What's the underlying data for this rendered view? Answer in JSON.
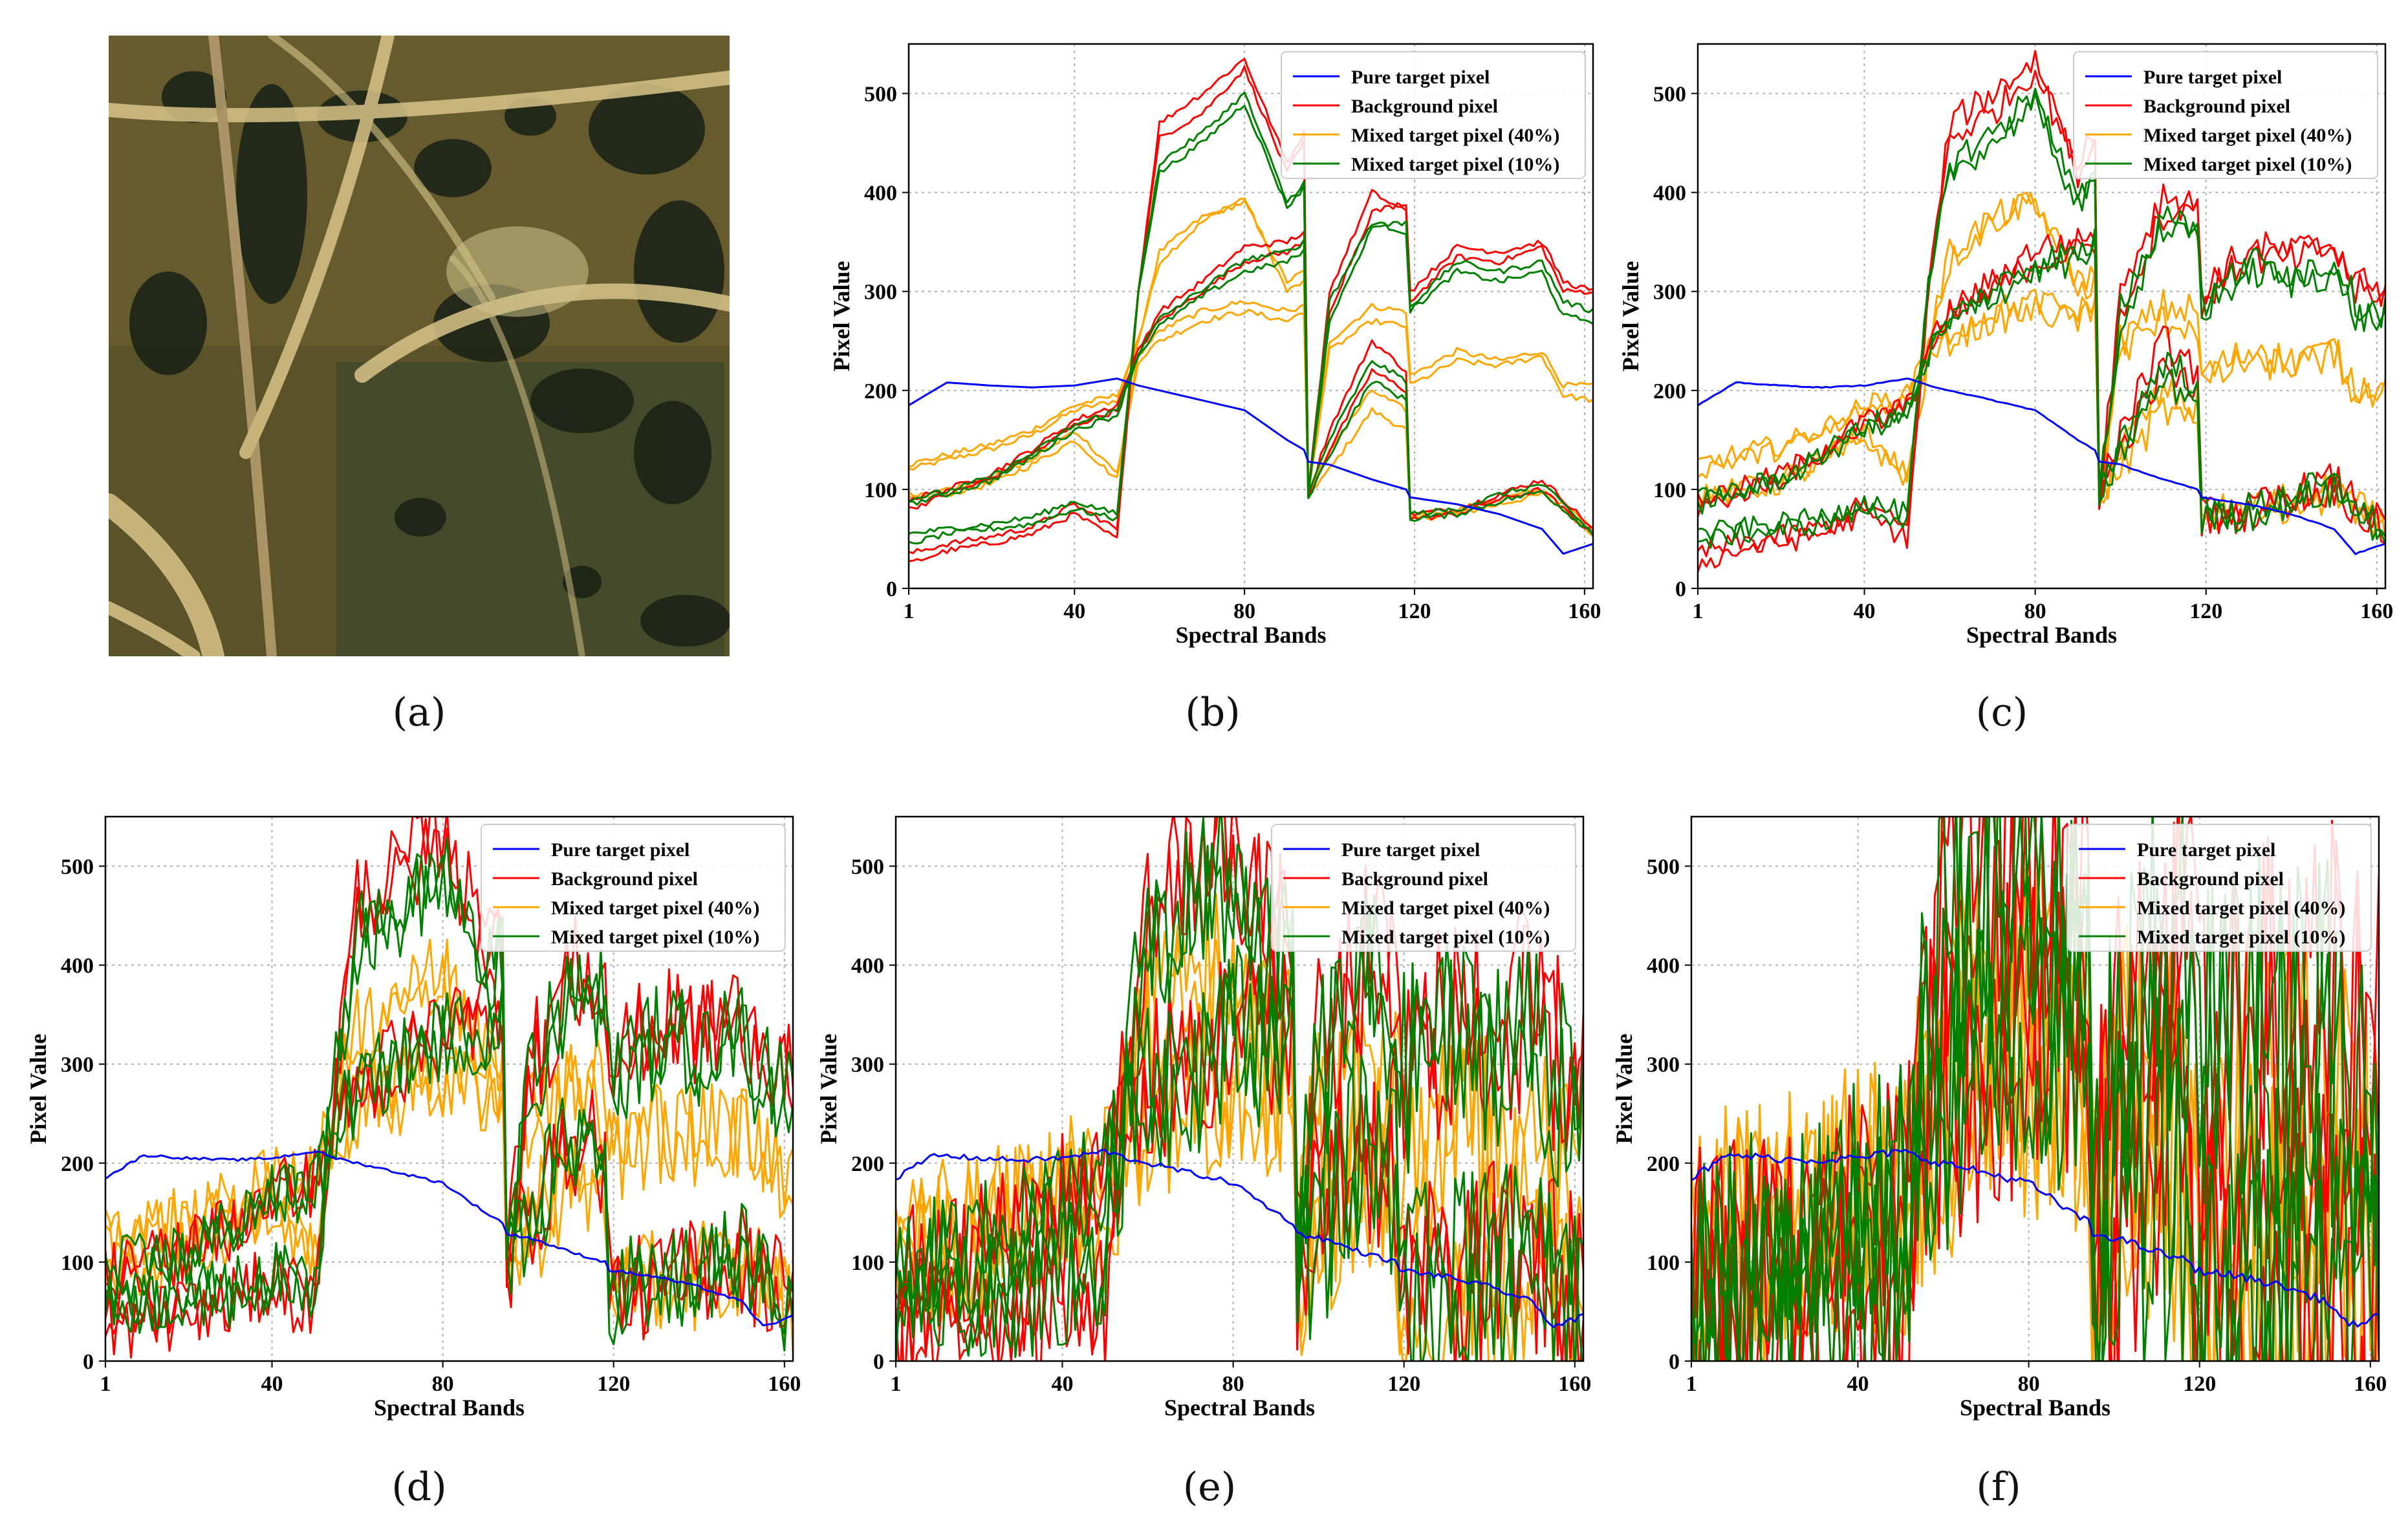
{
  "figure": {
    "photo_label": "(a)",
    "colors": {
      "pure": "#0000ff",
      "background": "#ff0000",
      "mixed40": "#ffa500",
      "mixed10": "#008000",
      "grid": "#b0b0b0"
    }
  },
  "chart_data": [
    {
      "panel_label": "(b)",
      "type": "line",
      "noise": 0,
      "xlabel": "Spectral Bands",
      "ylabel": "Pixel Value",
      "xlim": [
        1,
        162
      ],
      "ylim": [
        0,
        550
      ],
      "xticks": [
        1,
        40,
        80,
        120,
        160
      ],
      "yticks": [
        0,
        100,
        200,
        300,
        400,
        500
      ],
      "grid": true,
      "legend_position": "top-right",
      "legend": [
        "Pure target pixel",
        "Background pixel",
        "Mixed target pixel (40%)",
        "Mixed target pixel (10%)"
      ]
    },
    {
      "panel_label": "(c)",
      "type": "line",
      "noise": 15,
      "xlabel": "Spectral Bands",
      "ylabel": "Pixel Value",
      "xlim": [
        1,
        162
      ],
      "ylim": [
        0,
        550
      ],
      "xticks": [
        1,
        40,
        80,
        120,
        160
      ],
      "yticks": [
        0,
        100,
        200,
        300,
        400,
        500
      ],
      "grid": true,
      "legend_position": "top-right",
      "legend": [
        "Pure target pixel",
        "Background pixel",
        "Mixed target pixel (40%)",
        "Mixed target pixel (10%)"
      ]
    },
    {
      "panel_label": "(d)",
      "type": "line",
      "noise": 45,
      "xlabel": "Spectral Bands",
      "ylabel": "Pixel Value",
      "xlim": [
        1,
        162
      ],
      "ylim": [
        0,
        550
      ],
      "xticks": [
        1,
        40,
        80,
        120,
        160
      ],
      "yticks": [
        0,
        100,
        200,
        300,
        400,
        500
      ],
      "grid": true,
      "legend_position": "top-right",
      "legend": [
        "Pure target pixel",
        "Background pixel",
        "Mixed target pixel (40%)",
        "Mixed target pixel (10%)"
      ]
    },
    {
      "panel_label": "(e)",
      "type": "line",
      "noise": 90,
      "xlabel": "Spectral Bands",
      "ylabel": "Pixel Value",
      "xlim": [
        1,
        162
      ],
      "ylim": [
        0,
        550
      ],
      "xticks": [
        1,
        40,
        80,
        120,
        160
      ],
      "yticks": [
        0,
        100,
        200,
        300,
        400,
        500
      ],
      "grid": true,
      "legend_position": "top-right",
      "legend": [
        "Pure target pixel",
        "Background pixel",
        "Mixed target pixel (40%)",
        "Mixed target pixel (10%)"
      ]
    },
    {
      "panel_label": "(f)",
      "type": "line",
      "noise": 170,
      "xlabel": "Spectral Bands",
      "ylabel": "Pixel Value",
      "xlim": [
        1,
        162
      ],
      "ylim": [
        0,
        550
      ],
      "xticks": [
        1,
        40,
        80,
        120,
        160
      ],
      "yticks": [
        0,
        100,
        200,
        300,
        400,
        500
      ],
      "grid": true,
      "legend_position": "top-right",
      "legend": [
        "Pure target pixel",
        "Background pixel",
        "Mixed target pixel (40%)",
        "Mixed target pixel (10%)"
      ]
    }
  ],
  "spectra": {
    "bands": [
      1,
      10,
      20,
      30,
      40,
      50,
      55,
      60,
      70,
      80,
      90,
      94,
      95,
      100,
      110,
      118,
      119,
      130,
      140,
      150,
      155,
      162
    ],
    "pure_target": [
      185,
      208,
      205,
      203,
      205,
      212,
      205,
      200,
      190,
      180,
      150,
      140,
      128,
      125,
      110,
      100,
      92,
      85,
      75,
      60,
      35,
      45
    ],
    "background": [
      [
        25,
        38,
        45,
        55,
        75,
        50,
        300,
        470,
        500,
        535,
        430,
        460,
        95,
        160,
        250,
        220,
        75,
        80,
        95,
        110,
        90,
        60
      ],
      [
        35,
        45,
        52,
        62,
        85,
        60,
        300,
        455,
        480,
        525,
        420,
        450,
        95,
        300,
        400,
        380,
        290,
        335,
        330,
        345,
        300,
        300
      ],
      [
        80,
        95,
        110,
        135,
        165,
        180,
        240,
        270,
        300,
        330,
        340,
        350,
        92,
        140,
        220,
        200,
        70,
        75,
        90,
        100,
        80,
        55
      ],
      [
        90,
        100,
        115,
        140,
        170,
        185,
        240,
        280,
        310,
        345,
        350,
        360,
        95,
        280,
        380,
        390,
        300,
        345,
        340,
        350,
        310,
        300
      ]
    ],
    "mixed40": [
      [
        120,
        130,
        140,
        155,
        180,
        190,
        250,
        330,
        370,
        395,
        300,
        310,
        95,
        120,
        180,
        160,
        70,
        75,
        85,
        95,
        80,
        55
      ],
      [
        125,
        135,
        145,
        160,
        185,
        195,
        250,
        340,
        375,
        390,
        310,
        320,
        95,
        250,
        285,
        280,
        215,
        240,
        230,
        240,
        205,
        205
      ],
      [
        90,
        95,
        105,
        125,
        150,
        110,
        230,
        250,
        270,
        280,
        270,
        280,
        92,
        140,
        200,
        180,
        75,
        80,
        90,
        100,
        85,
        60
      ],
      [
        95,
        100,
        110,
        130,
        160,
        115,
        235,
        260,
        280,
        290,
        280,
        285,
        95,
        240,
        270,
        265,
        205,
        230,
        225,
        235,
        195,
        190
      ]
    ],
    "mixed10": [
      [
        45,
        55,
        60,
        65,
        80,
        70,
        300,
        430,
        460,
        500,
        390,
        410,
        95,
        150,
        230,
        210,
        75,
        80,
        95,
        105,
        85,
        55
      ],
      [
        55,
        60,
        65,
        72,
        88,
        75,
        300,
        420,
        450,
        490,
        385,
        405,
        95,
        290,
        370,
        360,
        280,
        320,
        310,
        320,
        275,
        270
      ],
      [
        85,
        95,
        108,
        132,
        160,
        175,
        235,
        265,
        295,
        320,
        330,
        340,
        92,
        135,
        210,
        190,
        70,
        75,
        88,
        98,
        80,
        55
      ],
      [
        90,
        98,
        112,
        136,
        165,
        180,
        238,
        272,
        302,
        332,
        340,
        350,
        95,
        270,
        365,
        370,
        285,
        330,
        320,
        330,
        290,
        280
      ]
    ]
  }
}
